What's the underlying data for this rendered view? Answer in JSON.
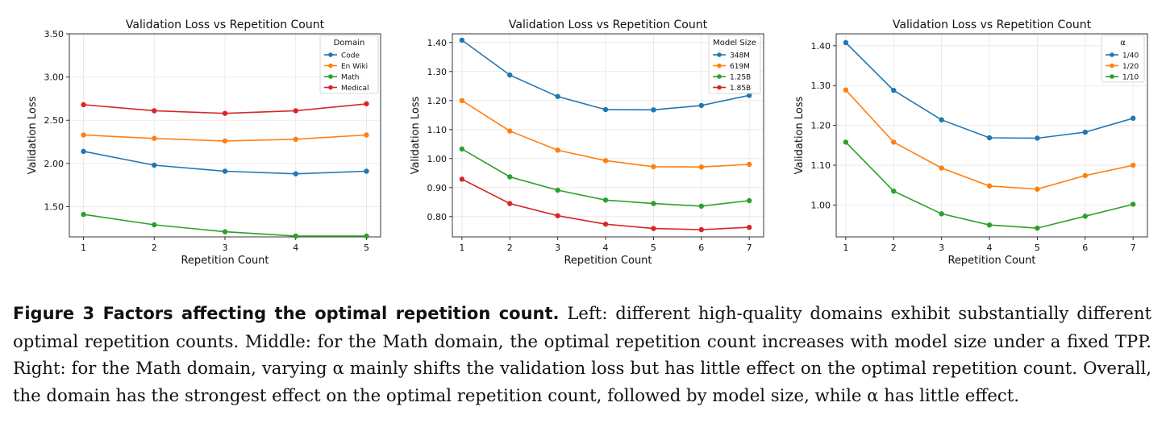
{
  "chart_data": [
    {
      "type": "line",
      "title": "Validation Loss vs Repetition Count",
      "xlabel": "Repetition Count",
      "ylabel": "Validation Loss",
      "x": [
        1,
        2,
        3,
        4,
        5
      ],
      "xticks": [
        "1",
        "2",
        "3",
        "4",
        "5"
      ],
      "xlim": [
        0.8,
        5.2
      ],
      "ylim": [
        1.15,
        3.5
      ],
      "yticks": [
        "1.50",
        "2.00",
        "2.50",
        "3.00",
        "3.50"
      ],
      "ytick_values": [
        1.5,
        2.0,
        2.5,
        3.0,
        3.5
      ],
      "grid": true,
      "legend": {
        "title": "Domain",
        "position": "top-right"
      },
      "series": [
        {
          "name": "Code",
          "color": "#1f77b4",
          "values": [
            2.14,
            1.98,
            1.91,
            1.88,
            1.91
          ]
        },
        {
          "name": "En Wiki",
          "color": "#ff7f0e",
          "values": [
            2.33,
            2.29,
            2.26,
            2.28,
            2.33
          ]
        },
        {
          "name": "Math",
          "color": "#2ca02c",
          "values": [
            1.41,
            1.29,
            1.21,
            1.16,
            1.16
          ]
        },
        {
          "name": "Medical",
          "color": "#d62728",
          "values": [
            2.68,
            2.61,
            2.58,
            2.61,
            2.69
          ]
        }
      ]
    },
    {
      "type": "line",
      "title": "Validation Loss vs Repetition Count",
      "xlabel": "Repetition Count",
      "ylabel": "Validation Loss",
      "x": [
        1,
        2,
        3,
        4,
        5,
        6,
        7
      ],
      "xticks": [
        "1",
        "2",
        "3",
        "4",
        "5",
        "6",
        "7"
      ],
      "xlim": [
        0.8,
        7.3
      ],
      "ylim": [
        0.73,
        1.43
      ],
      "yticks": [
        "0.80",
        "0.90",
        "1.00",
        "1.10",
        "1.20",
        "1.30",
        "1.40"
      ],
      "ytick_values": [
        0.8,
        0.9,
        1.0,
        1.1,
        1.2,
        1.3,
        1.4
      ],
      "grid": true,
      "legend": {
        "title": "Model Size",
        "position": "top-right"
      },
      "series": [
        {
          "name": "348M",
          "color": "#1f77b4",
          "values": [
            1.408,
            1.288,
            1.214,
            1.169,
            1.168,
            1.183,
            1.218
          ]
        },
        {
          "name": "619M",
          "color": "#ff7f0e",
          "values": [
            1.2,
            1.095,
            1.029,
            0.993,
            0.972,
            0.971,
            0.98
          ]
        },
        {
          "name": "1.25B",
          "color": "#2ca02c",
          "values": [
            1.033,
            0.937,
            0.891,
            0.857,
            0.845,
            0.836,
            0.855
          ]
        },
        {
          "name": "1.85B",
          "color": "#d62728",
          "values": [
            0.929,
            0.845,
            0.803,
            0.774,
            0.759,
            0.755,
            0.763
          ]
        }
      ]
    },
    {
      "type": "line",
      "title": "Validation Loss vs Repetition Count",
      "xlabel": "Repetition Count",
      "ylabel": "Validation Loss",
      "x": [
        1,
        2,
        3,
        4,
        5,
        6,
        7
      ],
      "xticks": [
        "1",
        "2",
        "3",
        "4",
        "5",
        "6",
        "7"
      ],
      "xlim": [
        0.8,
        7.3
      ],
      "ylim": [
        0.92,
        1.43
      ],
      "yticks": [
        "1.00",
        "1.10",
        "1.20",
        "1.30",
        "1.40"
      ],
      "ytick_values": [
        1.0,
        1.1,
        1.2,
        1.3,
        1.4
      ],
      "grid": true,
      "legend": {
        "title": "α",
        "position": "top-right"
      },
      "series": [
        {
          "name": "1/40",
          "color": "#1f77b4",
          "values": [
            1.408,
            1.288,
            1.214,
            1.169,
            1.168,
            1.183,
            1.218
          ]
        },
        {
          "name": "1/20",
          "color": "#ff7f0e",
          "values": [
            1.289,
            1.158,
            1.093,
            1.048,
            1.04,
            1.074,
            1.1
          ]
        },
        {
          "name": "1/10",
          "color": "#2ca02c",
          "values": [
            1.158,
            1.035,
            0.978,
            0.95,
            0.942,
            0.972,
            1.002
          ]
        }
      ]
    }
  ],
  "caption": {
    "label": "Figure 3  Factors affecting the optimal repetition count.",
    "text": " Left: different high-quality domains exhibit substantially different optimal repetition counts. Middle: for the Math domain, the optimal repetition count increases with model size under a fixed TPP. Right: for the Math domain, varying α mainly shifts the validation loss but has little effect on the optimal repetition count. Overall, the domain has the strongest effect on the optimal repetition count, followed by model size, while α has little effect."
  }
}
